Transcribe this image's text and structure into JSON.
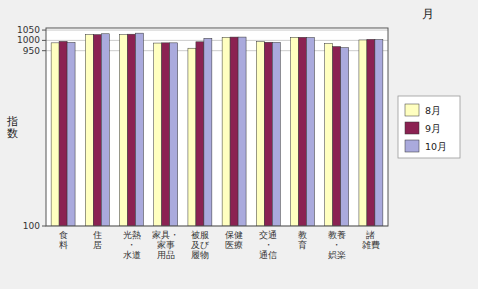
{
  "chart_data": {
    "type": "bar",
    "title": "月",
    "y_label": "指\n数",
    "categories": [
      "食\n料",
      "住\n居",
      "光熱\n・\n水道",
      "家具・\n家事\n用品",
      "被服\n及び\n履物",
      "保健\n医療",
      "交通\n・\n通信",
      "教\n育",
      "教養\n・\n娯楽",
      "諸\n雑費"
    ],
    "series": [
      {
        "name": "8月",
        "color": "#FFFFC0",
        "values": [
          988,
          1028,
          1028,
          987,
          962,
          1015,
          994,
          1015,
          985,
          1002
        ]
      },
      {
        "name": "9月",
        "color": "#8B2252",
        "values": [
          995,
          1028,
          1030,
          988,
          993,
          1016,
          991,
          1015,
          970,
          1005
        ]
      },
      {
        "name": "10月",
        "color": "#AAAADD",
        "values": [
          990,
          1032,
          1035,
          988,
          1010,
          1016,
          990,
          1014,
          965,
          1004
        ]
      }
    ],
    "ylim": [
      100,
      1060
    ],
    "yticks": [
      100,
      950,
      1000,
      1050
    ],
    "grid": true,
    "legend": "right"
  }
}
